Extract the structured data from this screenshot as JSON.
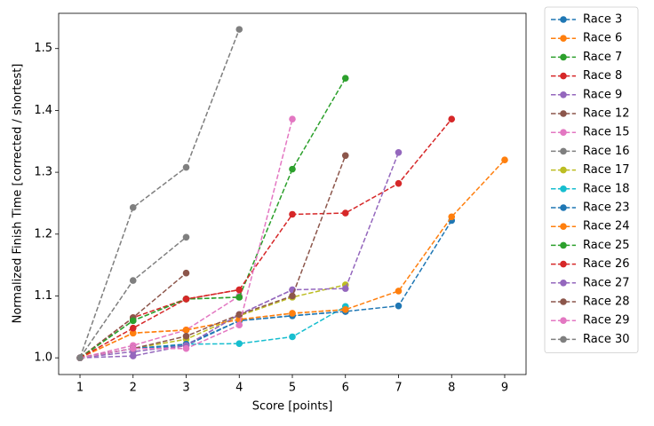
{
  "chart_data": {
    "type": "line",
    "x_label": "Score [points]",
    "y_label": "Normalized Finish Time [corrected / shortest]",
    "x": [
      1,
      2,
      3,
      4,
      5,
      6,
      7,
      8,
      9
    ],
    "xlim": [
      0.598,
      9.402
    ],
    "ylim": [
      0.973,
      1.557
    ],
    "xticks": [
      1,
      2,
      3,
      4,
      5,
      6,
      7,
      8,
      9
    ],
    "yticks": [
      {
        "value": 1.0,
        "label": "1.0"
      },
      {
        "value": 1.1,
        "label": "1.1"
      },
      {
        "value": 1.2,
        "label": "1.2"
      },
      {
        "value": 1.3,
        "label": "1.3"
      },
      {
        "value": 1.4,
        "label": "1.4"
      },
      {
        "value": 1.5,
        "label": "1.5"
      }
    ],
    "grid": false,
    "legend": "outside-right",
    "line_style": "dashed",
    "marker": "circle",
    "series": [
      {
        "name": "Race 3",
        "color": "#1f77b4",
        "values": [
          1.0,
          1.015,
          1.02,
          1.06,
          1.068,
          1.075,
          null,
          null,
          null
        ]
      },
      {
        "name": "Race 6",
        "color": "#ff7f0e",
        "values": [
          1.0,
          1.04,
          1.045,
          1.062,
          1.072,
          1.078,
          null,
          null,
          null
        ]
      },
      {
        "name": "Race 7",
        "color": "#2ca02c",
        "values": [
          1.0,
          1.06,
          1.095,
          1.098,
          null,
          null,
          null,
          null,
          null
        ]
      },
      {
        "name": "Race 8",
        "color": "#d62728",
        "values": [
          1.0,
          1.065,
          1.095,
          1.11,
          null,
          null,
          null,
          null,
          null
        ]
      },
      {
        "name": "Race 9",
        "color": "#9467bd",
        "values": [
          1.0,
          1.01,
          1.02,
          1.07,
          1.11,
          null,
          null,
          null,
          null
        ]
      },
      {
        "name": "Race 12",
        "color": "#8c564b",
        "values": [
          1.0,
          1.065,
          1.137,
          null,
          null,
          null,
          null,
          null,
          null
        ]
      },
      {
        "name": "Race 15",
        "color": "#e377c2",
        "values": [
          1.0,
          1.02,
          1.045,
          1.1,
          null,
          null,
          null,
          null,
          null
        ]
      },
      {
        "name": "Race 16",
        "color": "#7f7f7f",
        "values": [
          1.0,
          1.125,
          1.195,
          null,
          null,
          null,
          null,
          null,
          null
        ]
      },
      {
        "name": "Race 17",
        "color": "#bcbd22",
        "values": [
          1.0,
          1.015,
          1.03,
          1.068,
          1.098,
          1.118,
          null,
          null,
          null
        ]
      },
      {
        "name": "Race 18",
        "color": "#17becf",
        "values": [
          1.0,
          1.015,
          1.022,
          1.023,
          1.034,
          1.083,
          null,
          null,
          null
        ]
      },
      {
        "name": "Race 23",
        "color": "#1f77b4",
        "values": [
          1.0,
          1.015,
          1.022,
          1.06,
          1.068,
          1.075,
          1.084,
          1.222,
          null
        ]
      },
      {
        "name": "Race 24",
        "color": "#ff7f0e",
        "values": [
          1.0,
          1.04,
          1.045,
          1.062,
          1.072,
          1.078,
          1.108,
          1.228,
          1.32
        ]
      },
      {
        "name": "Race 25",
        "color": "#2ca02c",
        "values": [
          1.0,
          1.06,
          1.095,
          1.098,
          1.305,
          1.452,
          null,
          null,
          null
        ]
      },
      {
        "name": "Race 26",
        "color": "#d62728",
        "values": [
          1.0,
          1.048,
          1.095,
          1.11,
          1.232,
          1.234,
          1.282,
          1.386,
          null
        ]
      },
      {
        "name": "Race 27",
        "color": "#9467bd",
        "values": [
          1.0,
          1.003,
          1.02,
          1.07,
          1.11,
          1.112,
          1.332,
          null,
          null
        ]
      },
      {
        "name": "Race 28",
        "color": "#8c564b",
        "values": [
          1.0,
          1.015,
          1.035,
          1.07,
          1.1,
          1.327,
          null,
          null,
          null
        ]
      },
      {
        "name": "Race 29",
        "color": "#e377c2",
        "values": [
          1.0,
          1.015,
          1.015,
          1.053,
          1.386,
          null,
          null,
          null,
          null
        ]
      },
      {
        "name": "Race 30",
        "color": "#7f7f7f",
        "values": [
          1.0,
          1.243,
          1.308,
          1.531,
          null,
          null,
          null,
          null,
          null
        ]
      }
    ]
  }
}
